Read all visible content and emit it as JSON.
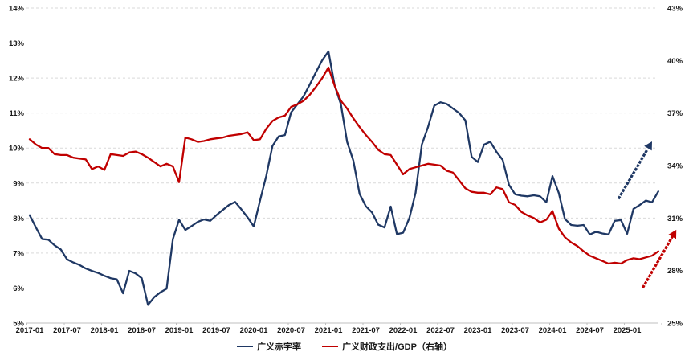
{
  "chart_data": {
    "type": "line",
    "title": "",
    "x_start": "2017-01",
    "x_step_months": 1,
    "x_tick_labels": [
      "2017-01",
      "2017-07",
      "2018-01",
      "2018-07",
      "2019-01",
      "2019-07",
      "2020-01",
      "2020-07",
      "2021-01",
      "2021-07",
      "2022-01",
      "2022-07",
      "2023-01",
      "2023-07",
      "2024-01",
      "2024-07",
      "2025-01"
    ],
    "left_axis": {
      "min": 5,
      "max": 14,
      "step": 1,
      "tick_labels": [
        "5%",
        "6%",
        "7%",
        "8%",
        "9%",
        "10%",
        "11%",
        "12%",
        "13%",
        "14%"
      ]
    },
    "right_axis": {
      "min": 25,
      "max": 43,
      "step": 3,
      "tick_labels": [
        "25%",
        "28%",
        "31%",
        "34%",
        "37%",
        "40%",
        "43%"
      ]
    },
    "grid": "horizontal-dashed",
    "legend_position": "bottom-center",
    "colors": {
      "blue": "#1f3864",
      "red": "#c00000",
      "gridline": "#d9d9d9",
      "axis": "#bfbfbf",
      "label": "#1a1a1a"
    },
    "series": [
      {
        "name": "广义赤字率",
        "axis": "left",
        "color": "#1f3864",
        "values": [
          8.08,
          7.73,
          7.4,
          7.38,
          7.22,
          7.1,
          6.82,
          6.73,
          6.66,
          6.56,
          6.49,
          6.43,
          6.35,
          6.28,
          6.25,
          5.85,
          6.49,
          6.42,
          6.28,
          5.52,
          5.74,
          5.88,
          5.98,
          7.4,
          7.95,
          7.66,
          7.77,
          7.89,
          7.96,
          7.92,
          8.08,
          8.23,
          8.37,
          8.46,
          8.25,
          8.02,
          7.76,
          8.5,
          9.2,
          10.06,
          10.33,
          10.37,
          11.02,
          11.25,
          11.48,
          11.82,
          12.17,
          12.51,
          12.76,
          11.78,
          11.25,
          10.17,
          9.64,
          8.69,
          8.34,
          8.16,
          7.81,
          7.73,
          8.33,
          7.54,
          7.58,
          8.0,
          8.72,
          10.1,
          10.6,
          11.21,
          11.31,
          11.26,
          11.13,
          11.0,
          10.79,
          9.75,
          9.6,
          10.1,
          10.18,
          9.89,
          9.66,
          8.95,
          8.68,
          8.64,
          8.62,
          8.65,
          8.62,
          8.45,
          9.2,
          8.72,
          7.97,
          7.8,
          7.78,
          7.8,
          7.53,
          7.61,
          7.56,
          7.53,
          7.92,
          7.94,
          7.55,
          8.26,
          8.37,
          8.5,
          8.45,
          8.76
        ]
      },
      {
        "name": "广义财政支出/GDP（右轴）",
        "axis": "right",
        "color": "#c00000",
        "values": [
          35.5,
          35.2,
          35.0,
          35.0,
          34.65,
          34.6,
          34.6,
          34.45,
          34.4,
          34.35,
          33.8,
          33.95,
          33.75,
          34.65,
          34.6,
          34.55,
          34.75,
          34.8,
          34.65,
          34.45,
          34.2,
          33.95,
          34.1,
          33.95,
          33.05,
          35.6,
          35.5,
          35.35,
          35.4,
          35.5,
          35.55,
          35.6,
          35.7,
          35.75,
          35.8,
          35.9,
          35.45,
          35.5,
          36.1,
          36.55,
          36.75,
          36.85,
          37.35,
          37.5,
          37.7,
          38.05,
          38.5,
          39.0,
          39.6,
          38.55,
          37.7,
          37.25,
          36.7,
          36.2,
          35.75,
          35.35,
          34.9,
          34.65,
          34.6,
          34.05,
          33.5,
          33.8,
          33.9,
          34.0,
          34.1,
          34.05,
          34.0,
          33.7,
          33.6,
          33.15,
          32.7,
          32.5,
          32.45,
          32.45,
          32.35,
          32.75,
          32.65,
          31.9,
          31.75,
          31.35,
          31.15,
          31.0,
          30.75,
          30.9,
          31.4,
          30.4,
          29.9,
          29.6,
          29.4,
          29.1,
          28.85,
          28.7,
          28.55,
          28.4,
          28.45,
          28.4,
          28.6,
          28.7,
          28.65,
          28.75,
          28.85,
          29.1
        ]
      }
    ],
    "annotations": {
      "arrows": [
        {
          "name": "blue-forecast-arrow",
          "color": "#1f3864",
          "axis": "left",
          "from": [
            94.7,
            8.58
          ],
          "to": [
            100.0,
            10.19
          ]
        },
        {
          "name": "red-forecast-arrow",
          "color": "#c00000",
          "axis": "right",
          "from": [
            98.6,
            27.07
          ],
          "to": [
            103.9,
            30.33
          ]
        }
      ]
    }
  },
  "legend": {
    "items": [
      {
        "label": "广义赤字率"
      },
      {
        "label": "广义财政支出/GDP（右轴）"
      }
    ]
  }
}
